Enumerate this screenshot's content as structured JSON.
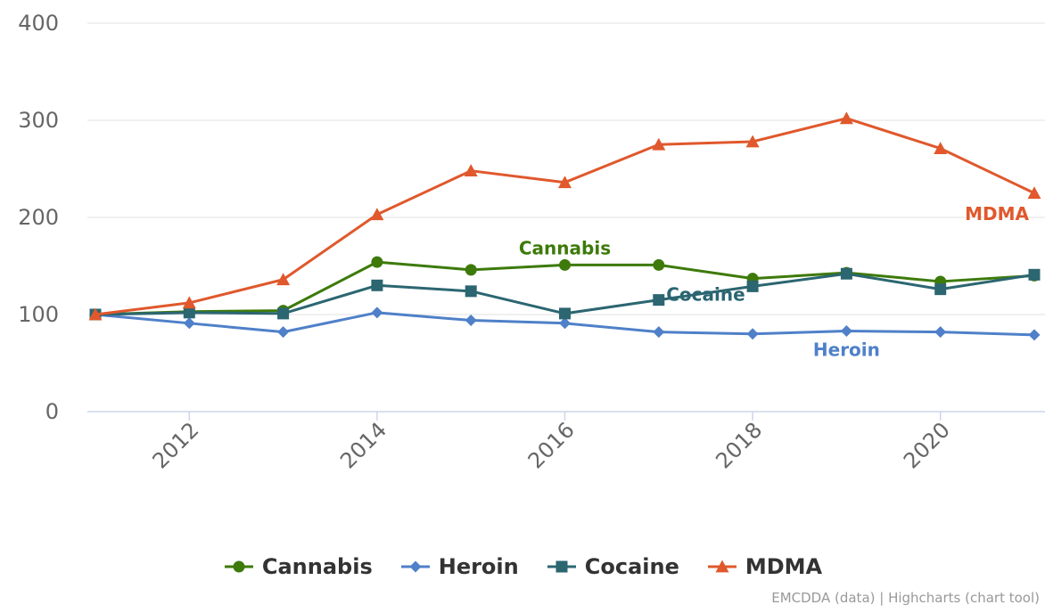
{
  "chart_data": {
    "type": "line",
    "x": [
      2011,
      2012,
      2013,
      2014,
      2015,
      2016,
      2017,
      2018,
      2019,
      2020,
      2021
    ],
    "xticks": [
      "2012",
      "2014",
      "2016",
      "2018",
      "2020"
    ],
    "yticks": [
      "0",
      "100",
      "200",
      "300",
      "400"
    ],
    "ylim": [
      0,
      400
    ],
    "grid": true,
    "legend_position": "bottom-center",
    "series": [
      {
        "name": "Cannabis",
        "color": "#3d7a0a",
        "marker": "circle",
        "label": "Cannabis",
        "values": [
          100,
          103,
          104,
          154,
          146,
          151,
          151,
          137,
          143,
          134,
          140
        ]
      },
      {
        "name": "Heroin",
        "color": "#4f80c9",
        "marker": "diamond",
        "label": "Heroin",
        "values": [
          100,
          91,
          82,
          102,
          94,
          91,
          82,
          80,
          83,
          82,
          79
        ]
      },
      {
        "name": "Cocaine",
        "color": "#2b6671",
        "marker": "square",
        "label": "Cocaine",
        "values": [
          100,
          102,
          101,
          130,
          124,
          101,
          115,
          129,
          142,
          126,
          141
        ]
      },
      {
        "name": "MDMA",
        "color": "#e0582c",
        "marker": "triangle",
        "label": "MDMA",
        "values": [
          100,
          112,
          136,
          203,
          248,
          236,
          275,
          278,
          302,
          271,
          225
        ]
      }
    ]
  },
  "credits": "EMCDDA (data) | Highcharts (chart tool)"
}
